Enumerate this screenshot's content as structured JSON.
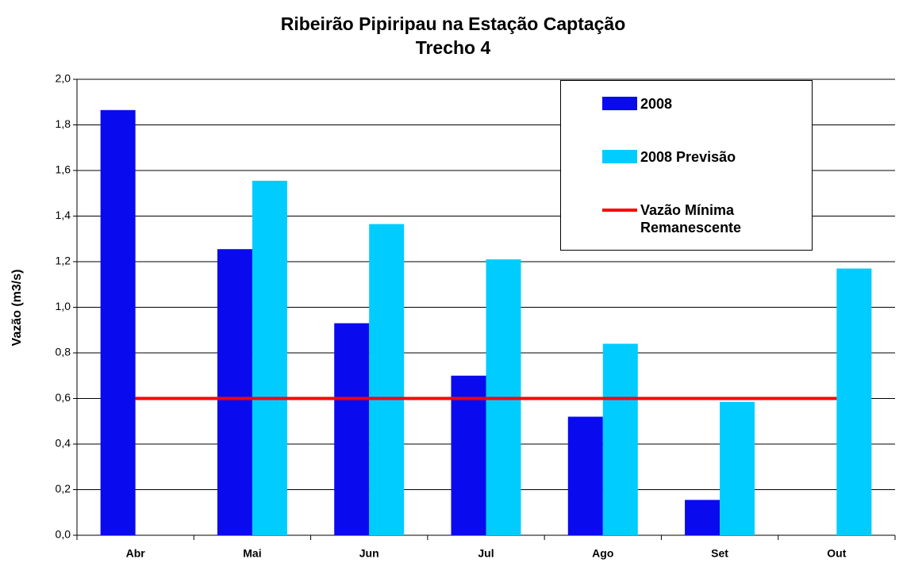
{
  "chart_data": {
    "type": "bar",
    "title": "Ribeirão Pipiripau na Estação Captação",
    "subtitle": "Trecho 4",
    "y_label": "Vazão (m3/s)",
    "categories": [
      "Abr",
      "Mai",
      "Jun",
      "Jul",
      "Ago",
      "Set",
      "Out"
    ],
    "series": [
      {
        "name": "2008",
        "color": "#0a0aee",
        "values": [
          1.865,
          1.255,
          0.93,
          0.7,
          0.52,
          0.155,
          null
        ]
      },
      {
        "name": "2008 Previsão",
        "color": "#00ccff",
        "values": [
          null,
          1.555,
          1.365,
          1.21,
          0.84,
          0.585,
          1.17
        ]
      },
      {
        "name": "Vazão Mínima Remanescente",
        "color": "#ff0000",
        "type": "line",
        "values": [
          0.6,
          0.6,
          0.6,
          0.6,
          0.6,
          0.6,
          0.6
        ]
      }
    ],
    "ylim": [
      0,
      2
    ],
    "yticks": [
      {
        "value": 0,
        "label": "0,0"
      },
      {
        "value": 0.2,
        "label": "0,2"
      },
      {
        "value": 0.4,
        "label": "0,4"
      },
      {
        "value": 0.6,
        "label": "0,6"
      },
      {
        "value": 0.8,
        "label": "0,8"
      },
      {
        "value": 1.0,
        "label": "1,0"
      },
      {
        "value": 1.2,
        "label": "1,2"
      },
      {
        "value": 1.4,
        "label": "1,4"
      },
      {
        "value": 1.6,
        "label": "1,6"
      },
      {
        "value": 1.8,
        "label": "1,8"
      },
      {
        "value": 2.0,
        "label": "2,0"
      }
    ],
    "grid": true,
    "legend": "upper right"
  }
}
